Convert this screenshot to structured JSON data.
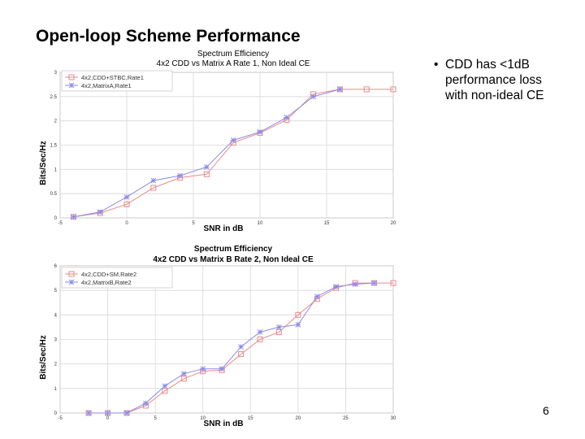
{
  "slide": {
    "title": "Open-loop Scheme Performance",
    "bullet": {
      "symbol": "•",
      "lines": [
        "CDD has <1dB",
        "performance loss",
        "with non-ideal CE"
      ]
    },
    "page_number": "6"
  },
  "chart_data": [
    {
      "type": "line",
      "title": "Spectrum Efficiency",
      "subtitle": "4x2 CDD vs Matrix A Rate 1, Non Ideal CE",
      "xlabel": "SNR in dB",
      "ylabel": "Bits/Sec/Hz",
      "xlim": [
        -5,
        20
      ],
      "ylim": [
        0,
        3
      ],
      "xticks": [
        -5,
        0,
        5,
        10,
        15,
        20
      ],
      "yticks": [
        0,
        0.5,
        1,
        1.5,
        2,
        2.5,
        3
      ],
      "grid": true,
      "legend_position": "top-left",
      "series": [
        {
          "name": "4x2,CDD+STBC,Rate1",
          "color": "#e98a8a",
          "marker": "square",
          "x": [
            -4,
            -2,
            0,
            2,
            4,
            6,
            8,
            10,
            12,
            14,
            16,
            18,
            20
          ],
          "y": [
            0.02,
            0.1,
            0.28,
            0.62,
            0.83,
            0.9,
            1.55,
            1.75,
            2.02,
            2.55,
            2.65,
            2.65,
            2.65
          ]
        },
        {
          "name": "4x2,MatrixA,Rate1",
          "color": "#8a8aea",
          "marker": "star",
          "x": [
            -4,
            -2,
            0,
            2,
            4,
            6,
            8,
            10,
            12,
            14,
            16
          ],
          "y": [
            0.02,
            0.12,
            0.43,
            0.77,
            0.87,
            1.05,
            1.6,
            1.77,
            2.07,
            2.5,
            2.65
          ]
        }
      ]
    },
    {
      "type": "line",
      "title": "Spectrum Efficiency",
      "subtitle": "4x2 CDD vs Matrix B Rate 2, Non Ideal CE",
      "xlabel": "SNR in dB",
      "ylabel": "Bits/Sec/Hz",
      "xlim": [
        -5,
        30
      ],
      "ylim": [
        0,
        6
      ],
      "xticks": [
        -5,
        0,
        5,
        10,
        15,
        20,
        25,
        30
      ],
      "yticks": [
        0,
        1,
        2,
        3,
        4,
        5,
        6
      ],
      "grid": true,
      "legend_position": "top-left",
      "series": [
        {
          "name": "4x2,CDD+SM,Rate2",
          "color": "#e98a8a",
          "marker": "square",
          "x": [
            -2,
            0,
            2,
            4,
            6,
            8,
            10,
            12,
            14,
            16,
            18,
            20,
            22,
            24,
            26,
            28,
            30
          ],
          "y": [
            0,
            0,
            0,
            0.3,
            0.9,
            1.4,
            1.7,
            1.75,
            2.4,
            3.0,
            3.3,
            4.0,
            4.65,
            5.1,
            5.3,
            5.3,
            5.3
          ]
        },
        {
          "name": "4x2,MatrixB,Rate2",
          "color": "#8a8aea",
          "marker": "star",
          "x": [
            -2,
            0,
            2,
            4,
            6,
            8,
            10,
            12,
            14,
            16,
            18,
            20,
            22,
            24,
            26,
            28
          ],
          "y": [
            0,
            0,
            0,
            0.4,
            1.1,
            1.6,
            1.8,
            1.8,
            2.7,
            3.3,
            3.5,
            3.6,
            4.75,
            5.15,
            5.25,
            5.3
          ]
        }
      ]
    }
  ]
}
